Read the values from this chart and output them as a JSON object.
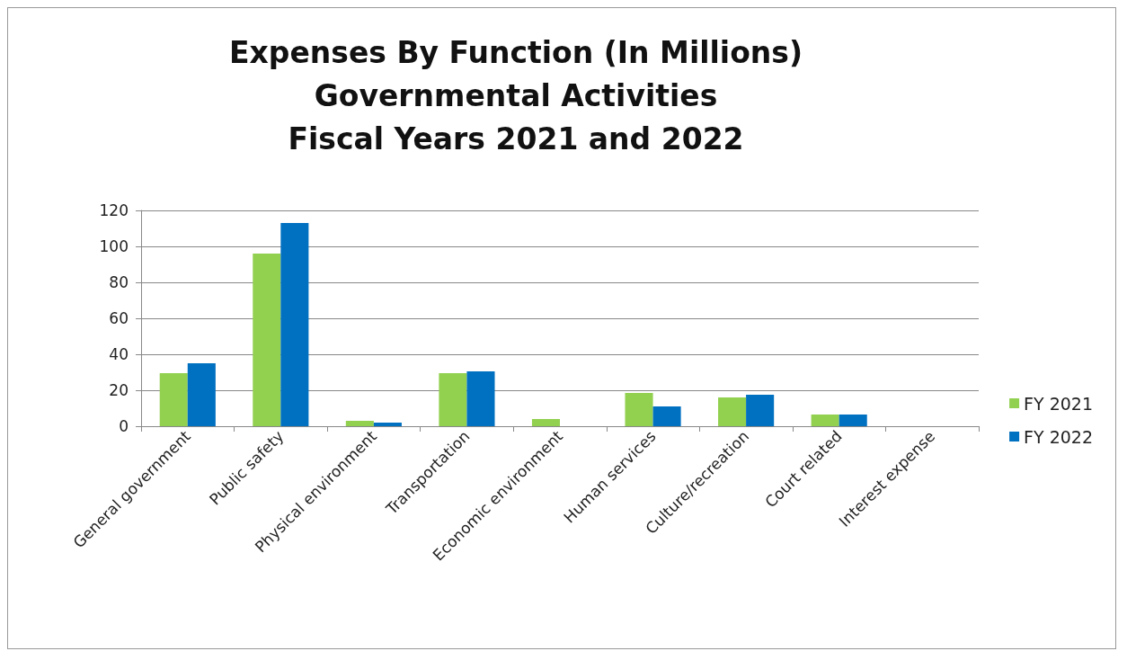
{
  "chart_data": {
    "type": "bar",
    "title": "Expenses By Function (In Millions)\nGovernmental Activities\nFiscal Years 2021 and 2022",
    "categories": [
      "General government",
      "Public safety",
      "Physical environment",
      "Transportation",
      "Economic environment",
      "Human services",
      "Culture/recreation",
      "Court related",
      "Interest expense"
    ],
    "series": [
      {
        "name": "FY 2021",
        "color": "#92d050",
        "values": [
          29.5,
          96,
          3,
          29.5,
          4,
          18.5,
          16,
          6.5,
          0
        ]
      },
      {
        "name": "FY 2022",
        "color": "#0070c0",
        "values": [
          35,
          113,
          2,
          30.5,
          0,
          11,
          17.5,
          6.5,
          0
        ]
      }
    ],
    "ylim": [
      0,
      120
    ],
    "yticks": [
      0,
      20,
      40,
      60,
      80,
      100,
      120
    ],
    "grid": "y",
    "legend": "right"
  }
}
